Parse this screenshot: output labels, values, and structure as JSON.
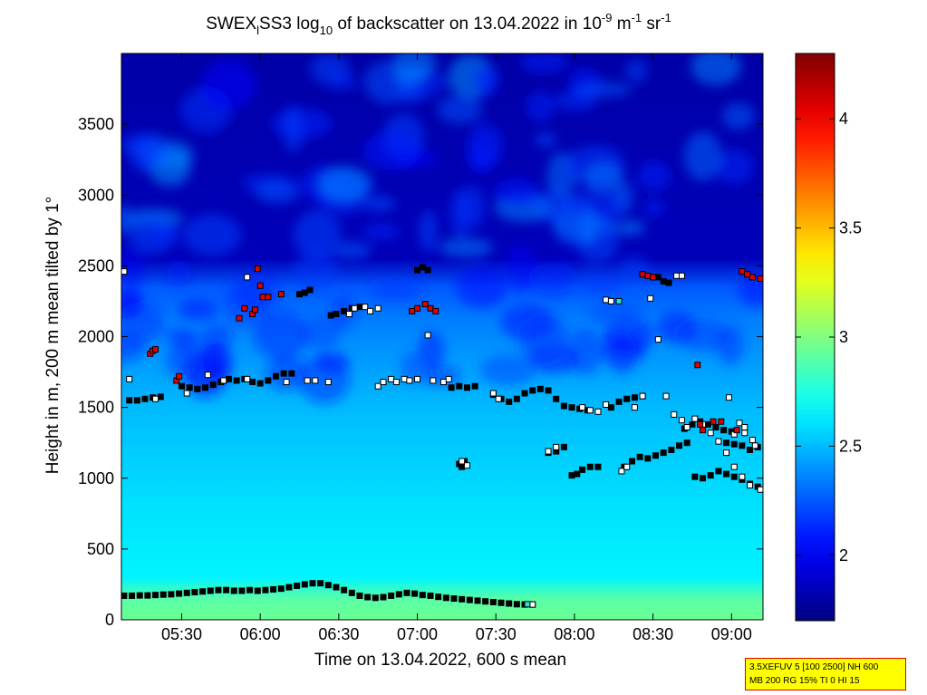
{
  "chart_data": {
    "type": "heatmap",
    "title": {
      "part1": "SWEX",
      "part1_sub": "l",
      "part2": "SS3 log",
      "part2_sub": "10",
      "part3": " of backscatter on 13.04.2022 in 10",
      "exp1": "-9",
      "part4": " m",
      "exp2": "-1",
      "part5": " sr",
      "exp3": "-1"
    },
    "xlabel": "Time on 13.04.2022, 600 s mean",
    "ylabel": "Height in m, 200 m mean tilted by 1°",
    "x_range": [
      "05:07",
      "09:12"
    ],
    "xlim": [
      307,
      552
    ],
    "ylim": [
      0,
      4000
    ],
    "x_ticks": [
      {
        "label": "05:30",
        "value": 330
      },
      {
        "label": "06:00",
        "value": 360
      },
      {
        "label": "06:30",
        "value": 390
      },
      {
        "label": "07:00",
        "value": 420
      },
      {
        "label": "07:30",
        "value": 450
      },
      {
        "label": "08:00",
        "value": 480
      },
      {
        "label": "08:30",
        "value": 510
      },
      {
        "label": "09:00",
        "value": 540
      }
    ],
    "y_ticks": [
      "0",
      "500",
      "1000",
      "1500",
      "2000",
      "2500",
      "3000",
      "3500"
    ],
    "y_tick_values": [
      0,
      500,
      1000,
      1500,
      2000,
      2500,
      3000,
      3500
    ],
    "colorbar": {
      "colormap": "jet",
      "range": [
        1.7,
        4.3
      ],
      "ticks": [
        "2",
        "2.5",
        "3",
        "3.5",
        "4"
      ],
      "tick_values": [
        2,
        2.5,
        3,
        3.5,
        4
      ]
    },
    "field_levels": [
      {
        "height": 0,
        "value": 2.95
      },
      {
        "height": 150,
        "value": 2.9
      },
      {
        "height": 300,
        "value": 2.65
      },
      {
        "height": 800,
        "value": 2.6
      },
      {
        "height": 1500,
        "value": 2.5
      },
      {
        "height": 2100,
        "value": 2.35
      },
      {
        "height": 2350,
        "value": 2.25
      },
      {
        "height": 2550,
        "value": 1.85
      },
      {
        "height": 4000,
        "value": 1.8
      }
    ],
    "series": [
      {
        "marker": "black-square",
        "points": [
          [
            308,
            170
          ],
          [
            311,
            170
          ],
          [
            314,
            172
          ],
          [
            317,
            172
          ],
          [
            320,
            175
          ],
          [
            323,
            178
          ],
          [
            326,
            180
          ],
          [
            329,
            185
          ],
          [
            332,
            190
          ],
          [
            335,
            195
          ],
          [
            338,
            200
          ],
          [
            341,
            205
          ],
          [
            344,
            210
          ],
          [
            347,
            210
          ],
          [
            350,
            205
          ],
          [
            353,
            205
          ],
          [
            356,
            210
          ],
          [
            359,
            205
          ],
          [
            362,
            210
          ],
          [
            365,
            215
          ],
          [
            368,
            220
          ],
          [
            371,
            230
          ],
          [
            374,
            240
          ],
          [
            377,
            250
          ],
          [
            380,
            258
          ],
          [
            383,
            258
          ],
          [
            386,
            245
          ],
          [
            389,
            230
          ],
          [
            392,
            210
          ],
          [
            395,
            190
          ],
          [
            398,
            170
          ],
          [
            401,
            160
          ],
          [
            404,
            155
          ],
          [
            407,
            160
          ],
          [
            410,
            170
          ],
          [
            413,
            180
          ],
          [
            416,
            190
          ],
          [
            419,
            185
          ],
          [
            422,
            175
          ],
          [
            425,
            170
          ],
          [
            428,
            162
          ],
          [
            431,
            155
          ],
          [
            434,
            150
          ],
          [
            437,
            145
          ],
          [
            440,
            140
          ],
          [
            443,
            135
          ],
          [
            446,
            130
          ],
          [
            449,
            125
          ],
          [
            452,
            120
          ],
          [
            455,
            115
          ],
          [
            458,
            110
          ],
          [
            461,
            108
          ],
          [
            464,
            108
          ],
          [
            310,
            1550
          ],
          [
            313,
            1550
          ],
          [
            316,
            1560
          ],
          [
            319,
            1570
          ],
          [
            322,
            1575
          ],
          [
            330,
            1650
          ],
          [
            333,
            1640
          ],
          [
            336,
            1630
          ],
          [
            339,
            1640
          ],
          [
            342,
            1660
          ],
          [
            345,
            1680
          ],
          [
            348,
            1700
          ],
          [
            351,
            1690
          ],
          [
            354,
            1700
          ],
          [
            357,
            1680
          ],
          [
            360,
            1670
          ],
          [
            363,
            1690
          ],
          [
            366,
            1720
          ],
          [
            369,
            1740
          ],
          [
            372,
            1740
          ],
          [
            387,
            2150
          ],
          [
            389,
            2160
          ],
          [
            392,
            2180
          ],
          [
            395,
            2200
          ],
          [
            398,
            2210
          ],
          [
            375,
            2300
          ],
          [
            377,
            2310
          ],
          [
            379,
            2330
          ],
          [
            420,
            2470
          ],
          [
            422,
            2490
          ],
          [
            424,
            2470
          ],
          [
            433,
            1640
          ],
          [
            436,
            1650
          ],
          [
            439,
            1640
          ],
          [
            442,
            1650
          ],
          [
            449,
            1590
          ],
          [
            452,
            1560
          ],
          [
            455,
            1540
          ],
          [
            458,
            1560
          ],
          [
            461,
            1600
          ],
          [
            464,
            1620
          ],
          [
            467,
            1630
          ],
          [
            470,
            1620
          ],
          [
            473,
            1560
          ],
          [
            476,
            1510
          ],
          [
            479,
            1500
          ],
          [
            482,
            1490
          ],
          [
            485,
            1480
          ],
          [
            436,
            1100
          ],
          [
            437,
            1080
          ],
          [
            438,
            1120
          ],
          [
            470,
            1180
          ],
          [
            473,
            1190
          ],
          [
            476,
            1220
          ],
          [
            479,
            1020
          ],
          [
            481,
            1030
          ],
          [
            483,
            1060
          ],
          [
            486,
            1080
          ],
          [
            489,
            1080
          ],
          [
            494,
            1500
          ],
          [
            497,
            1540
          ],
          [
            500,
            1560
          ],
          [
            503,
            1570
          ],
          [
            506,
            1580
          ],
          [
            499,
            1080
          ],
          [
            502,
            1120
          ],
          [
            505,
            1150
          ],
          [
            508,
            1140
          ],
          [
            511,
            1160
          ],
          [
            514,
            1180
          ],
          [
            517,
            1200
          ],
          [
            520,
            1230
          ],
          [
            523,
            1250
          ],
          [
            522,
            1350
          ],
          [
            525,
            1380
          ],
          [
            528,
            1400
          ],
          [
            531,
            1380
          ],
          [
            534,
            1360
          ],
          [
            537,
            1340
          ],
          [
            540,
            1330
          ],
          [
            538,
            1250
          ],
          [
            541,
            1240
          ],
          [
            544,
            1230
          ],
          [
            547,
            1200
          ],
          [
            550,
            1220
          ],
          [
            526,
            1010
          ],
          [
            529,
            1000
          ],
          [
            532,
            1020
          ],
          [
            535,
            1050
          ],
          [
            538,
            1030
          ],
          [
            541,
            1010
          ],
          [
            544,
            990
          ],
          [
            547,
            960
          ],
          [
            550,
            940
          ],
          [
            512,
            2420
          ],
          [
            514,
            2390
          ],
          [
            516,
            2380
          ]
        ]
      },
      {
        "marker": "white-square",
        "points": [
          [
            308,
            2460
          ],
          [
            310,
            1700
          ],
          [
            320,
            1560
          ],
          [
            332,
            1600
          ],
          [
            346,
            1690
          ],
          [
            355,
            1700
          ],
          [
            370,
            1680
          ],
          [
            378,
            1690
          ],
          [
            381,
            1690
          ],
          [
            386,
            1680
          ],
          [
            394,
            2160
          ],
          [
            396,
            2200
          ],
          [
            400,
            2210
          ],
          [
            402,
            2180
          ],
          [
            405,
            1650
          ],
          [
            407,
            1680
          ],
          [
            410,
            1700
          ],
          [
            412,
            1680
          ],
          [
            415,
            1700
          ],
          [
            417,
            1690
          ],
          [
            420,
            1700
          ],
          [
            424,
            2010
          ],
          [
            426,
            1690
          ],
          [
            430,
            1680
          ],
          [
            432,
            1700
          ],
          [
            437,
            1120
          ],
          [
            439,
            1090
          ],
          [
            449,
            1600
          ],
          [
            451,
            1560
          ],
          [
            470,
            1190
          ],
          [
            473,
            1220
          ],
          [
            483,
            1500
          ],
          [
            486,
            1480
          ],
          [
            489,
            1470
          ],
          [
            492,
            1520
          ],
          [
            498,
            1050
          ],
          [
            500,
            1080
          ],
          [
            492,
            2260
          ],
          [
            494,
            2250
          ],
          [
            503,
            1500
          ],
          [
            506,
            1580
          ],
          [
            509,
            2270
          ],
          [
            512,
            1980
          ],
          [
            515,
            1580
          ],
          [
            518,
            1450
          ],
          [
            521,
            1410
          ],
          [
            523,
            1360
          ],
          [
            526,
            1420
          ],
          [
            529,
            1380
          ],
          [
            532,
            1320
          ],
          [
            535,
            1260
          ],
          [
            538,
            1180
          ],
          [
            541,
            1080
          ],
          [
            544,
            1010
          ],
          [
            547,
            950
          ],
          [
            549,
            1230
          ],
          [
            551,
            920
          ],
          [
            541,
            1310
          ],
          [
            545,
            1320
          ],
          [
            548,
            1270
          ],
          [
            519,
            2430
          ],
          [
            521,
            2430
          ],
          [
            539,
            1570
          ],
          [
            543,
            1390
          ],
          [
            545,
            1360
          ],
          [
            340,
            1730
          ],
          [
            355,
            2420
          ],
          [
            405,
            2200
          ],
          [
            464,
            108
          ]
        ]
      },
      {
        "marker": "red-square",
        "points": [
          [
            318,
            1880
          ],
          [
            319,
            1900
          ],
          [
            320,
            1910
          ],
          [
            328,
            1690
          ],
          [
            329,
            1720
          ],
          [
            352,
            2130
          ],
          [
            354,
            2200
          ],
          [
            357,
            2160
          ],
          [
            358,
            2190
          ],
          [
            359,
            2480
          ],
          [
            360,
            2360
          ],
          [
            361,
            2280
          ],
          [
            363,
            2280
          ],
          [
            368,
            2300
          ],
          [
            418,
            2180
          ],
          [
            420,
            2200
          ],
          [
            423,
            2230
          ],
          [
            425,
            2200
          ],
          [
            427,
            2180
          ],
          [
            506,
            2440
          ],
          [
            508,
            2430
          ],
          [
            510,
            2420
          ],
          [
            527,
            1800
          ],
          [
            533,
            1400
          ],
          [
            536,
            1400
          ],
          [
            542,
            1340
          ],
          [
            544,
            2460
          ],
          [
            546,
            2440
          ],
          [
            548,
            2420
          ],
          [
            551,
            2410
          ],
          [
            528,
            1380
          ],
          [
            529,
            1340
          ]
        ]
      },
      {
        "marker": "cyan-square",
        "points": [
          [
            497,
            2250
          ],
          [
            462,
            110
          ]
        ]
      }
    ]
  },
  "info_box": {
    "line1": "3.5XEFUV 5 [100 2500] NH 600",
    "line2": "MB 200 RG 15% TI 0 HI 15"
  }
}
